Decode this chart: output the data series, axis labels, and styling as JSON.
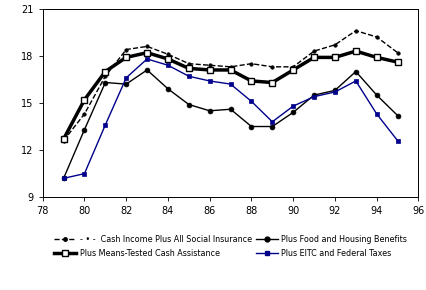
{
  "years": [
    79,
    80,
    81,
    82,
    83,
    84,
    85,
    86,
    87,
    88,
    89,
    90,
    91,
    92,
    93,
    94,
    95
  ],
  "cash_income_social_insurance": [
    12.6,
    14.3,
    16.7,
    18.4,
    18.6,
    18.1,
    17.5,
    17.4,
    17.3,
    17.5,
    17.3,
    17.3,
    18.3,
    18.7,
    19.6,
    19.2,
    18.2
  ],
  "means_tested_cash": [
    12.7,
    15.2,
    17.0,
    17.9,
    18.2,
    17.8,
    17.2,
    17.1,
    17.1,
    16.4,
    16.3,
    17.1,
    17.9,
    17.9,
    18.3,
    17.9,
    17.6
  ],
  "food_housing": [
    10.2,
    13.3,
    16.3,
    16.2,
    17.1,
    15.9,
    14.9,
    14.5,
    14.6,
    13.5,
    13.5,
    14.4,
    15.5,
    15.8,
    17.0,
    15.5,
    14.2
  ],
  "eitc_federal_taxes": [
    10.2,
    10.5,
    13.6,
    16.6,
    17.8,
    17.4,
    16.7,
    16.4,
    16.2,
    15.1,
    13.8,
    14.8,
    15.4,
    15.7,
    16.4,
    14.3,
    12.6
  ],
  "xlim": [
    78,
    96
  ],
  "ylim": [
    9,
    21
  ],
  "yticks": [
    9,
    12,
    15,
    18,
    21
  ],
  "xticks": [
    78,
    80,
    82,
    84,
    86,
    88,
    90,
    92,
    94,
    96
  ],
  "background_color": "#ffffff",
  "color_dashed": "#000000",
  "color_means_tested": "#000000",
  "color_food_housing": "#000000",
  "color_eitc": "#00008B"
}
